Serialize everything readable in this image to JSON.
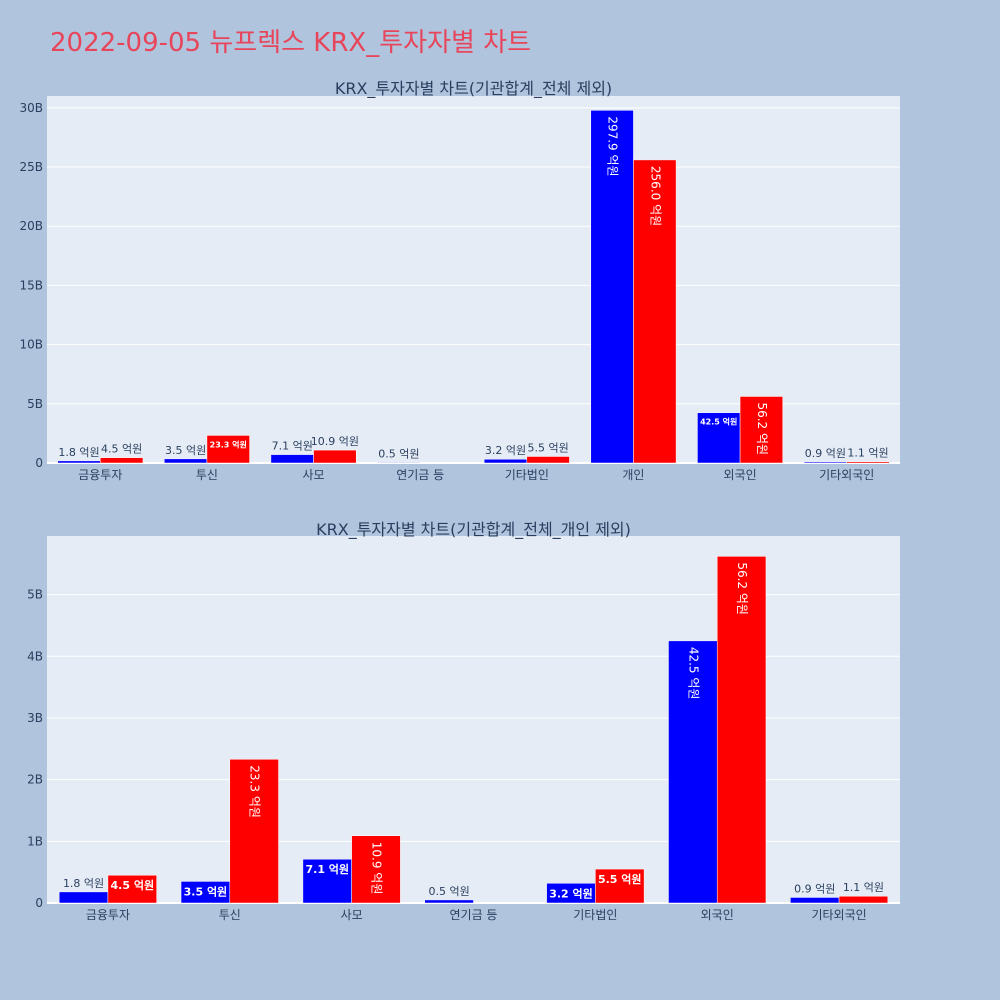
{
  "title": "2022-09-05 뉴프렉스 KRX_투자자별 차트",
  "colors": {
    "buy": "#0000ff",
    "sell": "#ff0000",
    "plot_bg": "#e5ecf6",
    "page_bg": "#b0c4de",
    "title": "#e8455a"
  },
  "chart_data": [
    {
      "type": "bar",
      "title": "KRX_투자자별 차트(기관합계_전체 제외)",
      "categories": [
        "금융투자",
        "투신",
        "사모",
        "연기금 등",
        "기타법인",
        "개인",
        "외국인",
        "기타외국인"
      ],
      "ylim": [
        0,
        31000000000
      ],
      "ytick_values": [
        0,
        5000000000,
        10000000000,
        15000000000,
        20000000000,
        25000000000,
        30000000000
      ],
      "ytick_labels": [
        "0",
        "5B",
        "10B",
        "15B",
        "20B",
        "25B",
        "30B"
      ],
      "grid": true,
      "series": [
        {
          "color": "#0000ff",
          "values": [
            180000000,
            350000000,
            710000000,
            50000000,
            320000000,
            29790000000,
            4250000000,
            90000000
          ],
          "labels": [
            "1.8 억원",
            "3.5 억원",
            "7.1 억원",
            "0.5 억원",
            "3.2 억원",
            "297.9 억원",
            "42.5 억원",
            "0.9 억원"
          ]
        },
        {
          "color": "#ff0000",
          "values": [
            450000000,
            2330000000,
            1090000000,
            0,
            550000000,
            25600000000,
            5620000000,
            110000000
          ],
          "labels": [
            "4.5 억원",
            "23.3 억원",
            "10.9 억원",
            "",
            "5.5 억원",
            "256.0 억원",
            "56.2 억원",
            "1.1 억원"
          ]
        }
      ]
    },
    {
      "type": "bar",
      "title": "KRX_투자자별 차트(기관합계_전체_개인 제외)",
      "categories": [
        "금융투자",
        "투신",
        "사모",
        "연기금 등",
        "기타법인",
        "외국인",
        "기타외국인"
      ],
      "ylim": [
        0,
        5950000000
      ],
      "ytick_values": [
        0,
        1000000000,
        2000000000,
        3000000000,
        4000000000,
        5000000000
      ],
      "ytick_labels": [
        "0",
        "1B",
        "2B",
        "3B",
        "4B",
        "5B"
      ],
      "grid": true,
      "series": [
        {
          "color": "#0000ff",
          "values": [
            180000000,
            350000000,
            710000000,
            50000000,
            320000000,
            4250000000,
            90000000
          ],
          "labels": [
            "1.8 억원",
            "3.5 억원",
            "7.1 억원",
            "0.5 억원",
            "3.2 억원",
            "42.5 억원",
            "0.9 억원"
          ]
        },
        {
          "color": "#ff0000",
          "values": [
            450000000,
            2330000000,
            1090000000,
            0,
            550000000,
            5620000000,
            110000000
          ],
          "labels": [
            "4.5 억원",
            "23.3 억원",
            "10.9 억원",
            "",
            "5.5 억원",
            "56.2 억원",
            "1.1 억원"
          ]
        }
      ]
    }
  ]
}
